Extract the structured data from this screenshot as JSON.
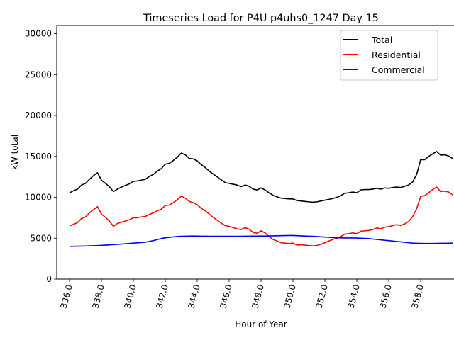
{
  "chart_data": {
    "type": "line",
    "title": "Timeseries Load for P4U p4uhs0_1247  Day 15",
    "xlabel": "Hour of Year",
    "ylabel": "kW total",
    "xlim": [
      335.2,
      360.8
    ],
    "ylim": [
      0,
      31000
    ],
    "xticks": [
      336,
      338,
      340,
      342,
      344,
      346,
      348,
      350,
      352,
      354,
      356,
      358
    ],
    "xtick_labels": [
      "336.0",
      "338.0",
      "340.0",
      "342.0",
      "344.0",
      "346.0",
      "348.0",
      "350.0",
      "352.0",
      "354.0",
      "356.0",
      "358.0"
    ],
    "yticks": [
      0,
      5000,
      10000,
      15000,
      20000,
      25000,
      30000
    ],
    "ytick_labels": [
      "0",
      "5000",
      "10000",
      "15000",
      "20000",
      "25000",
      "30000"
    ],
    "legend_position": "top-right",
    "x_start": 336,
    "x_step": 0.25,
    "series": [
      {
        "name": "Total",
        "color": "#000000",
        "values": [
          10550,
          10800,
          11000,
          11500,
          11700,
          12200,
          12650,
          13000,
          12100,
          11700,
          11300,
          10700,
          11000,
          11250,
          11450,
          11650,
          11950,
          12000,
          12100,
          12200,
          12550,
          12800,
          13200,
          13500,
          14050,
          14150,
          14500,
          14900,
          15400,
          15200,
          14750,
          14700,
          14450,
          14000,
          13650,
          13200,
          12850,
          12500,
          12150,
          11800,
          11700,
          11600,
          11500,
          11300,
          11500,
          11350,
          11000,
          10900,
          11150,
          10900,
          10550,
          10250,
          10050,
          9900,
          9850,
          9800,
          9800,
          9600,
          9550,
          9500,
          9450,
          9400,
          9450,
          9550,
          9650,
          9750,
          9850,
          10000,
          10200,
          10500,
          10550,
          10650,
          10550,
          10900,
          10950,
          10950,
          11000,
          11100,
          11000,
          11150,
          11100,
          11200,
          11250,
          11200,
          11350,
          11500,
          11900,
          12800,
          14600,
          14600,
          15000,
          15300,
          15600,
          15150,
          15200,
          15050,
          14750
        ]
      },
      {
        "name": "Residential",
        "color": "#ff0000",
        "values": [
          6500,
          6700,
          6900,
          7400,
          7600,
          8100,
          8500,
          8850,
          7950,
          7550,
          7100,
          6450,
          6800,
          6950,
          7100,
          7250,
          7500,
          7500,
          7600,
          7650,
          7900,
          8100,
          8350,
          8550,
          9000,
          9050,
          9350,
          9700,
          10150,
          9900,
          9500,
          9350,
          9100,
          8650,
          8350,
          7950,
          7550,
          7200,
          6850,
          6550,
          6450,
          6300,
          6150,
          6050,
          6300,
          6100,
          5700,
          5600,
          5900,
          5650,
          5200,
          4850,
          4650,
          4450,
          4400,
          4350,
          4400,
          4150,
          4200,
          4150,
          4100,
          4050,
          4100,
          4250,
          4450,
          4650,
          4850,
          5000,
          5200,
          5500,
          5550,
          5650,
          5550,
          5850,
          5900,
          5950,
          6050,
          6250,
          6150,
          6350,
          6400,
          6550,
          6650,
          6550,
          6750,
          7050,
          7650,
          8600,
          10100,
          10200,
          10550,
          10950,
          11250,
          10700,
          10750,
          10650,
          10300
        ]
      },
      {
        "name": "Commercial",
        "color": "#0000ff",
        "values": [
          4000,
          4010,
          4020,
          4030,
          4040,
          4060,
          4080,
          4100,
          4120,
          4150,
          4180,
          4220,
          4250,
          4280,
          4320,
          4360,
          4400,
          4430,
          4470,
          4510,
          4600,
          4700,
          4830,
          4960,
          5050,
          5100,
          5160,
          5200,
          5240,
          5250,
          5260,
          5265,
          5260,
          5250,
          5245,
          5240,
          5235,
          5230,
          5230,
          5230,
          5230,
          5230,
          5235,
          5240,
          5245,
          5250,
          5255,
          5260,
          5265,
          5270,
          5280,
          5290,
          5300,
          5310,
          5320,
          5330,
          5330,
          5310,
          5290,
          5270,
          5250,
          5230,
          5200,
          5170,
          5140,
          5110,
          5080,
          5060,
          5040,
          5030,
          5030,
          5030,
          5020,
          5000,
          4980,
          4950,
          4900,
          4850,
          4800,
          4750,
          4700,
          4650,
          4600,
          4550,
          4500,
          4450,
          4400,
          4380,
          4370,
          4360,
          4360,
          4360,
          4370,
          4380,
          4380,
          4390,
          4400
        ]
      }
    ]
  }
}
